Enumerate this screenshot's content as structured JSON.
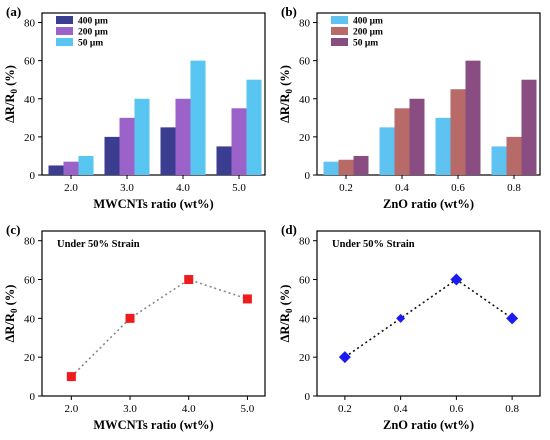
{
  "panels": [
    {
      "id": "a",
      "label": "(a)",
      "chart_data": {
        "type": "bar",
        "categories": [
          "2.0",
          "3.0",
          "4.0",
          "5.0"
        ],
        "series": [
          {
            "name": "400 μm",
            "values": [
              5,
              20,
              25,
              15
            ],
            "color": "#3b3d91"
          },
          {
            "name": "200 μm",
            "values": [
              7,
              30,
              40,
              35
            ],
            "color": "#9b63c9"
          },
          {
            "name": "50 μm",
            "values": [
              10,
              40,
              60,
              50
            ],
            "color": "#58c6f1"
          }
        ],
        "xlabel": "MWCNTs ratio (wt%)",
        "ylabel": "ΔR/R0 (%)",
        "ylim": [
          0,
          85
        ],
        "yticks": [
          0,
          20,
          40,
          60,
          80
        ],
        "legend": "top-left"
      }
    },
    {
      "id": "b",
      "label": "(b)",
      "chart_data": {
        "type": "bar",
        "categories": [
          "0.2",
          "0.4",
          "0.6",
          "0.8"
        ],
        "series": [
          {
            "name": "400 μm",
            "values": [
              7,
              25,
              30,
              15
            ],
            "color": "#5ec3f1"
          },
          {
            "name": "200 μm",
            "values": [
              8,
              35,
              45,
              20
            ],
            "color": "#b86a68"
          },
          {
            "name": "50 μm",
            "values": [
              10,
              40,
              60,
              50
            ],
            "color": "#8a4d82"
          }
        ],
        "xlabel": "ZnO ratio (wt%)",
        "ylabel": "ΔR/R0 (%)",
        "ylim": [
          0,
          85
        ],
        "yticks": [
          0,
          20,
          40,
          60,
          80
        ],
        "legend": "top-left"
      }
    },
    {
      "id": "c",
      "label": "(c)",
      "annotation": "Under 50% Strain",
      "chart_data": {
        "type": "scatter",
        "x": [
          2.0,
          3.0,
          4.0,
          5.0
        ],
        "xticks": [
          "2.0",
          "3.0",
          "4.0",
          "5.0"
        ],
        "y": [
          10,
          40,
          60,
          50
        ],
        "marker": "square",
        "color": "#ee1c1c",
        "line": "dotted",
        "line_color": "#888888",
        "xlabel": "MWCNTs ratio (wt%)",
        "ylabel": "ΔR/R0 (%)",
        "xlim": [
          1.5,
          5.3
        ],
        "ylim": [
          0,
          85
        ],
        "yticks": [
          0,
          20,
          40,
          60,
          80
        ]
      }
    },
    {
      "id": "d",
      "label": "(d)",
      "annotation": "Under 50% Strain",
      "chart_data": {
        "type": "scatter",
        "x": [
          0.2,
          0.4,
          0.6,
          0.8
        ],
        "xticks": [
          "0.2",
          "0.4",
          "0.6",
          "0.8"
        ],
        "y": [
          20,
          40,
          60,
          40
        ],
        "marker": "diamond",
        "color": "#1b1bf2",
        "line": "dotted",
        "line_color": "#111111",
        "xlabel": "ZnO ratio (wt%)",
        "ylabel": "ΔR/R0 (%)",
        "xlim": [
          0.1,
          0.9
        ],
        "ylim": [
          0,
          85
        ],
        "yticks": [
          0,
          20,
          40,
          60,
          80
        ]
      }
    }
  ]
}
